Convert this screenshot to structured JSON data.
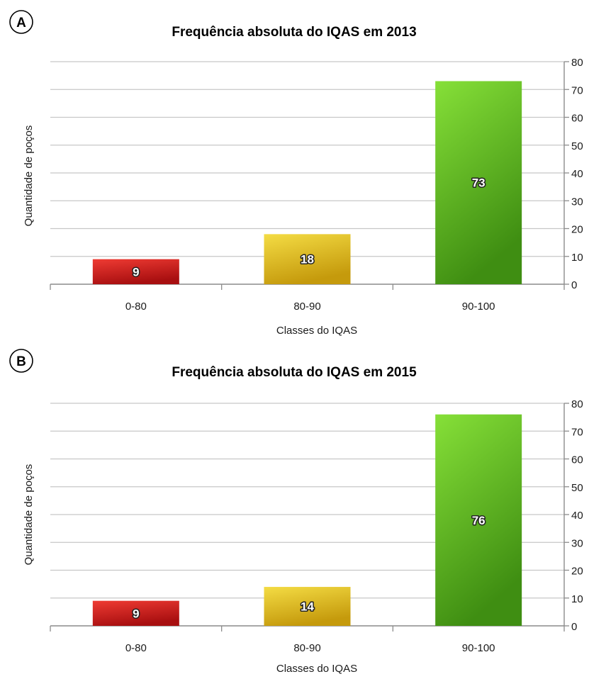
{
  "colors": {
    "grid": "#c7c7c7",
    "axis": "#8c8c8c",
    "text": "#1a1a1a",
    "bars": [
      {
        "top": "#ef3b33",
        "bottom": "#a80f10"
      },
      {
        "top": "#f4dc44",
        "bottom": "#c59a0c"
      },
      {
        "top": "#86e038",
        "bottom": "#3f8e12"
      }
    ]
  },
  "chart_data": [
    {
      "panel_label": "A",
      "type": "bar",
      "title": "Frequência absoluta do IQAS em 2013",
      "xlabel": "Classes do IQAS",
      "ylabel": "Quantidade de poços",
      "categories": [
        "0-80",
        "80-90",
        "90-100"
      ],
      "values": [
        9,
        18,
        73
      ],
      "data_labels": [
        "9",
        "18",
        "73"
      ],
      "ylim": [
        0,
        80
      ],
      "yticks": [
        "0",
        "10",
        "20",
        "30",
        "40",
        "50",
        "60",
        "70",
        "80"
      ],
      "y_axis_side": "right",
      "grid": true,
      "legend": "none"
    },
    {
      "panel_label": "B",
      "type": "bar",
      "title": "Frequência absoluta do IQAS em 2015",
      "xlabel": "Classes do IQAS",
      "ylabel": "Quantidade de poços",
      "categories": [
        "0-80",
        "80-90",
        "90-100"
      ],
      "values": [
        9,
        14,
        76
      ],
      "data_labels": [
        "9",
        "14",
        "76"
      ],
      "ylim": [
        0,
        80
      ],
      "yticks": [
        "0",
        "10",
        "20",
        "30",
        "40",
        "50",
        "60",
        "70",
        "80"
      ],
      "y_axis_side": "right",
      "grid": true,
      "legend": "none"
    }
  ]
}
